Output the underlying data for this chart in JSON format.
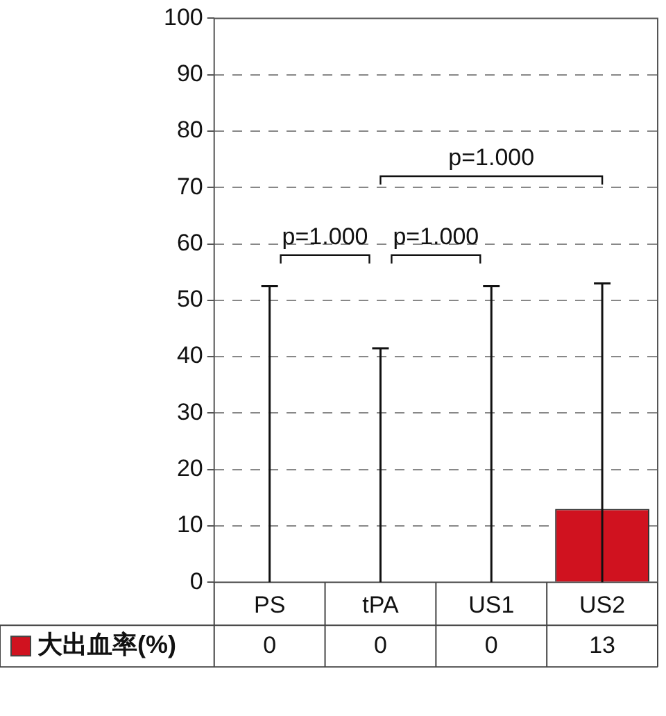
{
  "chart_data": {
    "type": "bar",
    "categories": [
      "PS",
      "tPA",
      "US1",
      "US2"
    ],
    "series": [
      {
        "name": "大出血率(%)",
        "color": "#d0121f",
        "values": [
          0,
          0,
          0,
          13
        ],
        "errors": [
          [
            0,
            52.5
          ],
          [
            0,
            41.5
          ],
          [
            0,
            52.5
          ],
          [
            0,
            53
          ]
        ]
      }
    ],
    "ylim": [
      0,
      100
    ],
    "yticks": [
      0,
      10,
      20,
      30,
      40,
      50,
      60,
      70,
      80,
      90,
      100
    ],
    "grid": "y",
    "legend": "bottom",
    "data_labels": true,
    "annotations": [
      "p=1.000",
      "p=1.000",
      "p=1.000"
    ]
  }
}
